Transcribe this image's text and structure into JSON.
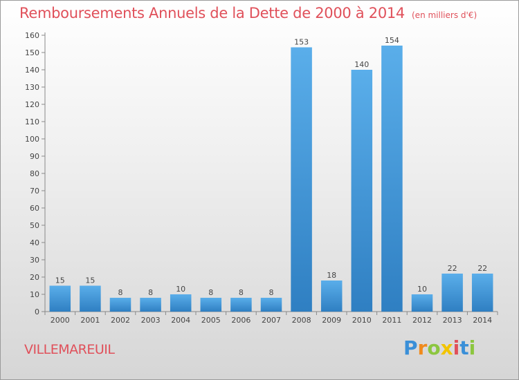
{
  "chart_data": {
    "type": "bar",
    "title": "Remboursements Annuels de la Dette de 2000 à 2014",
    "subtitle": "(en milliers d'€)",
    "categories": [
      "2000",
      "2001",
      "2002",
      "2003",
      "2004",
      "2005",
      "2006",
      "2007",
      "2008",
      "2009",
      "2010",
      "2011",
      "2012",
      "2013",
      "2014"
    ],
    "values": [
      15,
      15,
      8,
      8,
      10,
      8,
      8,
      8,
      153,
      18,
      140,
      154,
      10,
      22,
      22
    ],
    "ylim": [
      0,
      160
    ],
    "yticks": [
      0,
      10,
      20,
      30,
      40,
      50,
      60,
      70,
      80,
      90,
      100,
      110,
      120,
      130,
      140,
      150,
      160
    ],
    "grid": false,
    "bar_color": "#4da3e0"
  },
  "commune": "VILLEMAREUIL",
  "logo": {
    "text": "Proxiti",
    "letters": [
      {
        "ch": "P",
        "color": "#3a8fd8"
      },
      {
        "ch": "r",
        "color": "#f08a1c"
      },
      {
        "ch": "o",
        "color": "#8cc63f"
      },
      {
        "ch": "x",
        "color": "#f2c400"
      },
      {
        "ch": "i",
        "color": "#e0505a"
      },
      {
        "ch": "t",
        "color": "#3a8fd8"
      },
      {
        "ch": "i",
        "color": "#8cc63f"
      }
    ]
  }
}
